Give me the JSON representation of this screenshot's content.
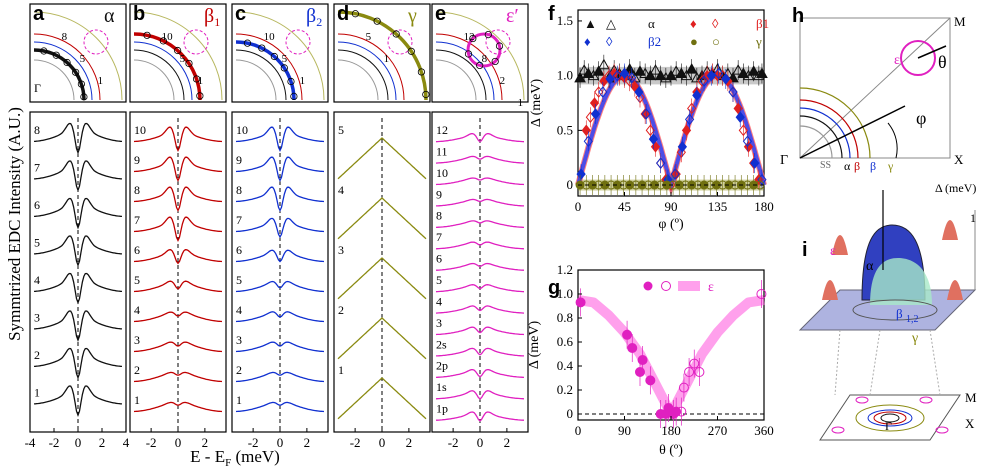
{
  "figure": {
    "y_axis_label": "Symmtrized EDC Intensity (A.U.)",
    "x_axis_label": "E - E",
    "x_axis_label_sub": "F",
    "x_axis_unit": " (meV)"
  },
  "panels_edc": [
    {
      "letter": "a",
      "symbol": "α",
      "sub": "",
      "color": "#111111",
      "xticks": [
        "-4",
        "-2",
        "0",
        "2",
        "4"
      ],
      "labels": [
        "8",
        "7",
        "6",
        "5",
        "4",
        "3",
        "2",
        "1"
      ],
      "gap": [
        1,
        1,
        1,
        1,
        1,
        1,
        1,
        1
      ],
      "fs_labels": [
        "8",
        "5",
        "1"
      ],
      "gamma": "Γ"
    },
    {
      "letter": "b",
      "symbol": "β",
      "sub": "1",
      "color": "#c00000",
      "xticks": [
        "-2",
        "0",
        "2"
      ],
      "labels": [
        "10",
        "9",
        "8",
        "7",
        "6",
        "5",
        "4",
        "3",
        "2",
        "1"
      ],
      "gap": [
        1,
        1,
        1,
        1,
        0.6,
        0.35,
        0.2,
        0.2,
        0.15,
        0.15
      ],
      "fs_labels": [
        "10",
        "5",
        "1"
      ]
    },
    {
      "letter": "c",
      "symbol": "β",
      "sub": "2",
      "color": "#1030d0",
      "xticks": [
        "-2",
        "0",
        "2"
      ],
      "labels": [
        "10",
        "9",
        "8",
        "7",
        "6",
        "5",
        "4",
        "3",
        "2",
        "1"
      ],
      "gap": [
        1,
        1,
        1,
        0.8,
        0.5,
        0.3,
        0.25,
        0.2,
        0.15,
        0.15
      ],
      "fs_labels": [
        "10",
        "5",
        "1"
      ]
    },
    {
      "letter": "d",
      "symbol": "γ",
      "sub": "",
      "color": "#8a8a10",
      "xticks": [
        "-2",
        "0",
        "2"
      ],
      "labels": [
        "5",
        "4",
        "3",
        "2",
        "1"
      ],
      "gap": [
        0,
        0,
        0,
        0,
        0
      ],
      "fs_labels": [
        "5",
        "1"
      ]
    },
    {
      "letter": "e",
      "symbol": "ε′",
      "sub": "",
      "color": "#e020c0",
      "xticks": [
        "-2",
        "0",
        "2"
      ],
      "labels": [
        "12",
        "11",
        "10",
        "9",
        "8",
        "7",
        "6",
        "5",
        "4",
        "3",
        "2s",
        "2p",
        "1s",
        "1p"
      ],
      "gap": [
        0.5,
        0.2,
        0.15,
        0.15,
        0.15,
        0.2,
        0.2,
        0.25,
        0.3,
        0.35,
        0.4,
        0.45,
        0.5,
        0.55
      ],
      "fs_labels": [
        "12",
        "8",
        "2",
        "1"
      ]
    }
  ],
  "chart_data": [
    {
      "type": "scatter",
      "panel": "f",
      "xlabel": "φ (º)",
      "ylabel": "Δ (meV)",
      "xlim": [
        0,
        180
      ],
      "ylim": [
        -0.1,
        1.6
      ],
      "xticks": [
        "0",
        "45",
        "90",
        "135",
        "180"
      ],
      "yticks": [
        "0",
        "0.5",
        "1.0",
        "1.5"
      ],
      "legend": {
        "row1": [
          "α",
          "",
          "α",
          "",
          "β1"
        ],
        "row2": [
          "",
          "",
          "β2",
          "",
          "γ"
        ]
      },
      "series": [
        {
          "name": "α",
          "color": "#111111",
          "marker": "triangle",
          "x": [
            2,
            6,
            10,
            15,
            20,
            25,
            30,
            35,
            40,
            45,
            50,
            55,
            60,
            65,
            70,
            75,
            80,
            85,
            90,
            95,
            100,
            105,
            110,
            115,
            120,
            125,
            130,
            135,
            140,
            145,
            150,
            155,
            160,
            165,
            170,
            175,
            178
          ],
          "y": [
            0.98,
            1.05,
            1.02,
            1.0,
            1.04,
            1.1,
            0.98,
            1.05,
            1.02,
            1.0,
            1.06,
            0.98,
            1.04,
            1.02,
            1.0,
            1.05,
            1.0,
            0.98,
            1.0,
            1.04,
            1.02,
            1.0,
            1.06,
            0.98,
            1.0,
            1.04,
            1.02,
            1.06,
            1.0,
            1.02,
            0.98,
            1.05,
            1.02,
            1.0,
            1.04,
            1.0,
            1.02
          ]
        },
        {
          "name": "β1",
          "color": "#e02020",
          "marker": "diamond",
          "x": [
            8,
            12,
            16,
            20,
            25,
            30,
            35,
            40,
            45,
            50,
            55,
            60,
            65,
            70,
            75,
            80,
            85,
            90,
            95,
            100,
            105,
            110,
            115,
            120,
            125,
            130,
            135,
            140,
            145,
            150,
            155,
            160,
            165,
            170,
            175
          ],
          "y": [
            0.5,
            0.62,
            0.75,
            0.85,
            0.95,
            1.0,
            1.02,
            1.0,
            0.98,
            0.95,
            0.9,
            0.8,
            0.65,
            0.5,
            0.35,
            0.2,
            0.05,
            0.0,
            0.1,
            0.3,
            0.5,
            0.7,
            0.85,
            0.95,
            1.0,
            1.02,
            1.0,
            1.0,
            0.95,
            0.85,
            0.7,
            0.5,
            0.35,
            0.2,
            0.05
          ]
        },
        {
          "name": "β2",
          "color": "#1030d0",
          "marker": "diamond",
          "x": [
            3,
            10,
            17,
            24,
            31,
            38,
            45,
            52,
            59,
            66,
            73,
            80,
            87,
            94,
            101,
            108,
            115,
            122,
            129,
            136,
            143,
            150,
            157,
            164,
            171,
            178
          ],
          "y": [
            0.1,
            0.4,
            0.65,
            0.85,
            0.97,
            1.0,
            1.02,
            0.98,
            0.85,
            0.65,
            0.42,
            0.2,
            0.05,
            0.1,
            0.35,
            0.6,
            0.82,
            0.95,
            1.0,
            1.02,
            0.97,
            0.85,
            0.62,
            0.4,
            0.2,
            0.05
          ]
        },
        {
          "name": "γ",
          "color": "#707010",
          "marker": "circle",
          "x": [
            2,
            8,
            14,
            20,
            26,
            32,
            38,
            44,
            50,
            56,
            62,
            68,
            74,
            80,
            86,
            92,
            98,
            104,
            110,
            116,
            122,
            128,
            134,
            140,
            146,
            152,
            158,
            164,
            170,
            176
          ],
          "y": [
            0,
            0,
            0,
            0,
            0,
            0,
            0,
            0,
            0,
            0,
            0,
            0,
            0,
            0,
            0,
            0,
            0,
            0,
            0,
            0,
            0,
            0,
            0,
            0,
            0,
            0,
            0,
            0,
            0,
            0
          ]
        }
      ]
    },
    {
      "type": "scatter",
      "panel": "g",
      "xlabel": "θ (º)",
      "ylabel": "Δ (meV)",
      "xlim": [
        0,
        360
      ],
      "ylim": [
        -0.05,
        1.2
      ],
      "xticks": [
        "0",
        "90",
        "180",
        "270",
        "360"
      ],
      "yticks": [
        "0",
        "0.2",
        "0.4",
        "0.6",
        "0.8",
        "1.0",
        "1.2"
      ],
      "legend": "ε",
      "series": [
        {
          "name": "ε",
          "color": "#e020c0",
          "marker": "circle",
          "x": [
            5,
            95,
            105,
            120,
            125,
            140,
            160,
            170,
            175,
            185,
            190,
            200,
            205,
            215,
            225,
            235,
            355
          ],
          "y": [
            0.93,
            0.66,
            0.55,
            0.35,
            0.45,
            0.28,
            0.0,
            0.0,
            0.05,
            0.0,
            0.02,
            0.02,
            0.22,
            0.35,
            0.42,
            0.35,
            1.0
          ]
        }
      ],
      "fit": {
        "x": [
          0,
          30,
          60,
          90,
          120,
          150,
          180,
          210,
          240,
          270,
          300,
          330,
          360
        ],
        "y": [
          0.95,
          0.93,
          0.82,
          0.68,
          0.5,
          0.25,
          0.0,
          0.25,
          0.5,
          0.68,
          0.82,
          0.93,
          0.95
        ]
      }
    }
  ],
  "panel_h": {
    "letter": "h",
    "labels": [
      "M",
      "X",
      "Γ",
      "ε",
      "θ",
      "φ",
      "SS",
      "α",
      "β",
      "1",
      "β",
      "2",
      "γ"
    ]
  },
  "panel_i": {
    "letter": "i",
    "labels": [
      "Δ (meV)",
      "1",
      "ε",
      "α",
      "β",
      "1,2",
      "γ",
      "M",
      "X",
      "Γ"
    ]
  }
}
